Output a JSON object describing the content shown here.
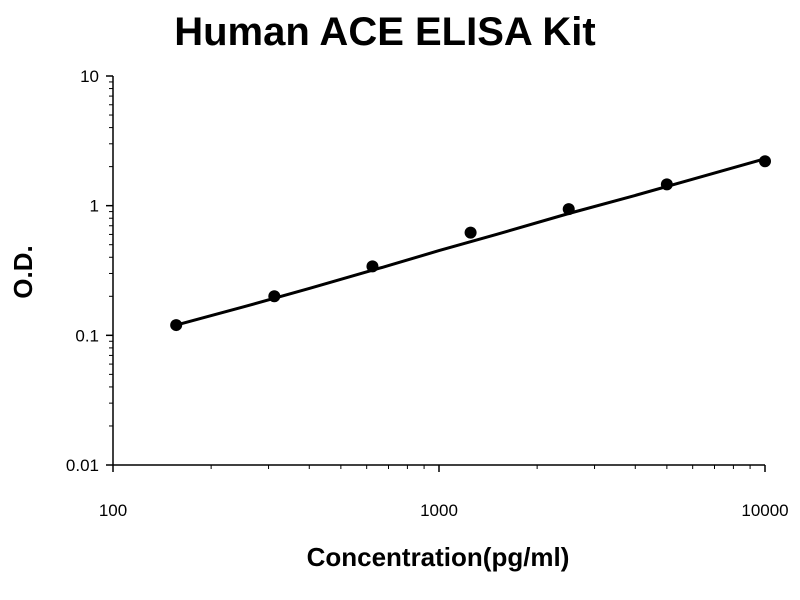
{
  "chart_data": {
    "type": "scatter",
    "title": "Human ACE ELISA Kit",
    "xlabel": "Concentration(pg/ml)",
    "ylabel": "O.D.",
    "x_scale": "log",
    "y_scale": "log",
    "xlim": [
      100,
      10000
    ],
    "ylim": [
      0.01,
      10
    ],
    "x_ticks": [
      {
        "value": 100,
        "label": "100"
      },
      {
        "value": 1000,
        "label": "1000"
      },
      {
        "value": 10000,
        "label": "10000"
      }
    ],
    "y_ticks": [
      {
        "value": 10,
        "label": "10"
      },
      {
        "value": 1,
        "label": "1"
      },
      {
        "value": 0.1,
        "label": "0.1"
      },
      {
        "value": 0.01,
        "label": "0.01"
      }
    ],
    "grid": false,
    "series": [
      {
        "x": [
          156.25,
          312.5,
          625,
          1250,
          2500,
          5000,
          10000
        ],
        "y": [
          0.12,
          0.2,
          0.34,
          0.62,
          0.94,
          1.46,
          2.2
        ],
        "marker_color": "#000000"
      }
    ],
    "fit_curve": {
      "x": [
        156.25,
        250,
        400,
        700,
        1000,
        1500,
        2500,
        4000,
        6000,
        10000
      ],
      "y": [
        0.12,
        0.165,
        0.23,
        0.345,
        0.45,
        0.6,
        0.87,
        1.2,
        1.6,
        2.3
      ],
      "color": "#000000"
    }
  }
}
